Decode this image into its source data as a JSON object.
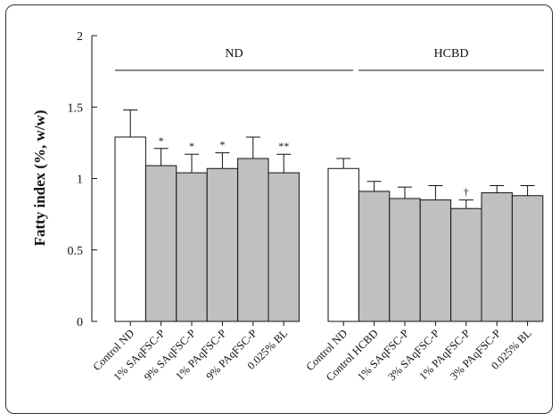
{
  "chart_data": {
    "type": "bar",
    "title": "",
    "xlabel": "",
    "ylabel": "Fatty index (%, w/w)",
    "ylim": [
      0,
      2
    ],
    "yticks": [
      "0",
      "0.5",
      "1",
      "1.5",
      "2"
    ],
    "grid": false,
    "groups": [
      {
        "label": "ND",
        "categories": [
          "Control ND",
          "1% SAqFSC-P",
          "9% SAqFSC-P",
          "1% PAqFSC-P",
          "9% PAqFSC-P",
          "0.025% BL"
        ],
        "values": [
          1.29,
          1.09,
          1.04,
          1.07,
          1.14,
          1.04
        ],
        "errors": [
          0.19,
          0.12,
          0.13,
          0.11,
          0.15,
          0.13
        ],
        "annotations": [
          "",
          "*",
          "*",
          "*",
          "",
          "**"
        ],
        "fills": [
          "#ffffff",
          "#c0c0c0",
          "#c0c0c0",
          "#c0c0c0",
          "#c0c0c0",
          "#c0c0c0"
        ]
      },
      {
        "label": "HCBD",
        "categories": [
          "Control ND",
          "Control HCBD",
          "1% SAqFSC-P",
          "3% SAqFSC-P",
          "1% PAqFSC-P",
          "3% PAqFSC-P",
          "0.025% BL"
        ],
        "values": [
          1.07,
          0.91,
          0.86,
          0.85,
          0.79,
          0.9,
          0.88
        ],
        "errors": [
          0.07,
          0.07,
          0.08,
          0.1,
          0.06,
          0.05,
          0.07
        ],
        "annotations": [
          "",
          "",
          "",
          "",
          "†",
          "",
          ""
        ],
        "fills": [
          "#ffffff",
          "#c0c0c0",
          "#c0c0c0",
          "#c0c0c0",
          "#c0c0c0",
          "#c0c0c0",
          "#c0c0c0"
        ]
      }
    ]
  }
}
